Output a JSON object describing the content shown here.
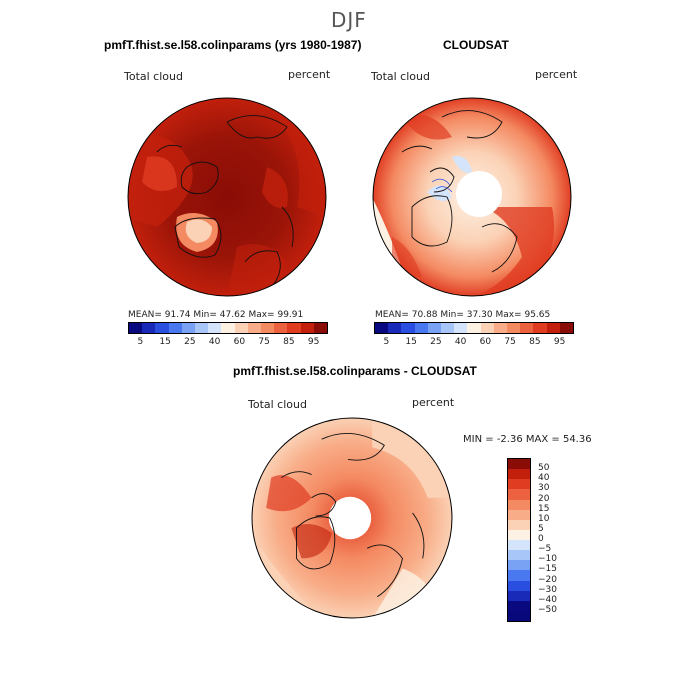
{
  "figure": {
    "title": "DJF"
  },
  "panel_left": {
    "title": "pmfT.fhist.se.l58.colinparams (yrs 1980-1987)",
    "variable": "Total cloud",
    "units": "percent",
    "mean_label": "MEAN=",
    "mean": "91.74",
    "min_label": "Min=",
    "min": "47.62",
    "max_label": "Max=",
    "max": "99.91"
  },
  "panel_right": {
    "title": "CLOUDSAT",
    "variable": "Total cloud",
    "units": "percent",
    "mean_label": "MEAN=",
    "mean": "70.88",
    "min_label": "Min=",
    "min": "37.30",
    "max_label": "Max=",
    "max": "95.65"
  },
  "panel_diff": {
    "title": "pmfT.fhist.se.l58.colinparams - CLOUDSAT",
    "variable": "Total cloud",
    "units": "percent",
    "min_label": "MIN =",
    "min": "-2.36",
    "max_label": "MAX =",
    "max": "54.36"
  },
  "colorbar_abs": {
    "colors": [
      "#0a0a80",
      "#1a2ab8",
      "#2a4ee0",
      "#4a78f0",
      "#7aa2f4",
      "#a8c6f8",
      "#d4e4fa",
      "#fdf1e4",
      "#fbd2b6",
      "#f8ad88",
      "#f48a62",
      "#ec6240",
      "#e03c22",
      "#c2200c",
      "#8a0c06"
    ],
    "ticks": [
      "5",
      "15",
      "25",
      "40",
      "60",
      "75",
      "85",
      "95"
    ]
  },
  "colorbar_diff": {
    "colors": [
      "#8a0c06",
      "#c2200c",
      "#e03c22",
      "#ec6240",
      "#f48a62",
      "#f8ad88",
      "#fbd2b6",
      "#fdf1e4",
      "#d4e4fa",
      "#a8c6f8",
      "#7aa2f4",
      "#4a78f0",
      "#2a4ee0",
      "#1a2ab8",
      "#0a0a80",
      "#08087a"
    ],
    "ticks": [
      "50",
      "40",
      "30",
      "20",
      "15",
      "10",
      "5",
      "0",
      "−5",
      "−10",
      "−15",
      "−20",
      "−30",
      "−40",
      "−50"
    ]
  }
}
